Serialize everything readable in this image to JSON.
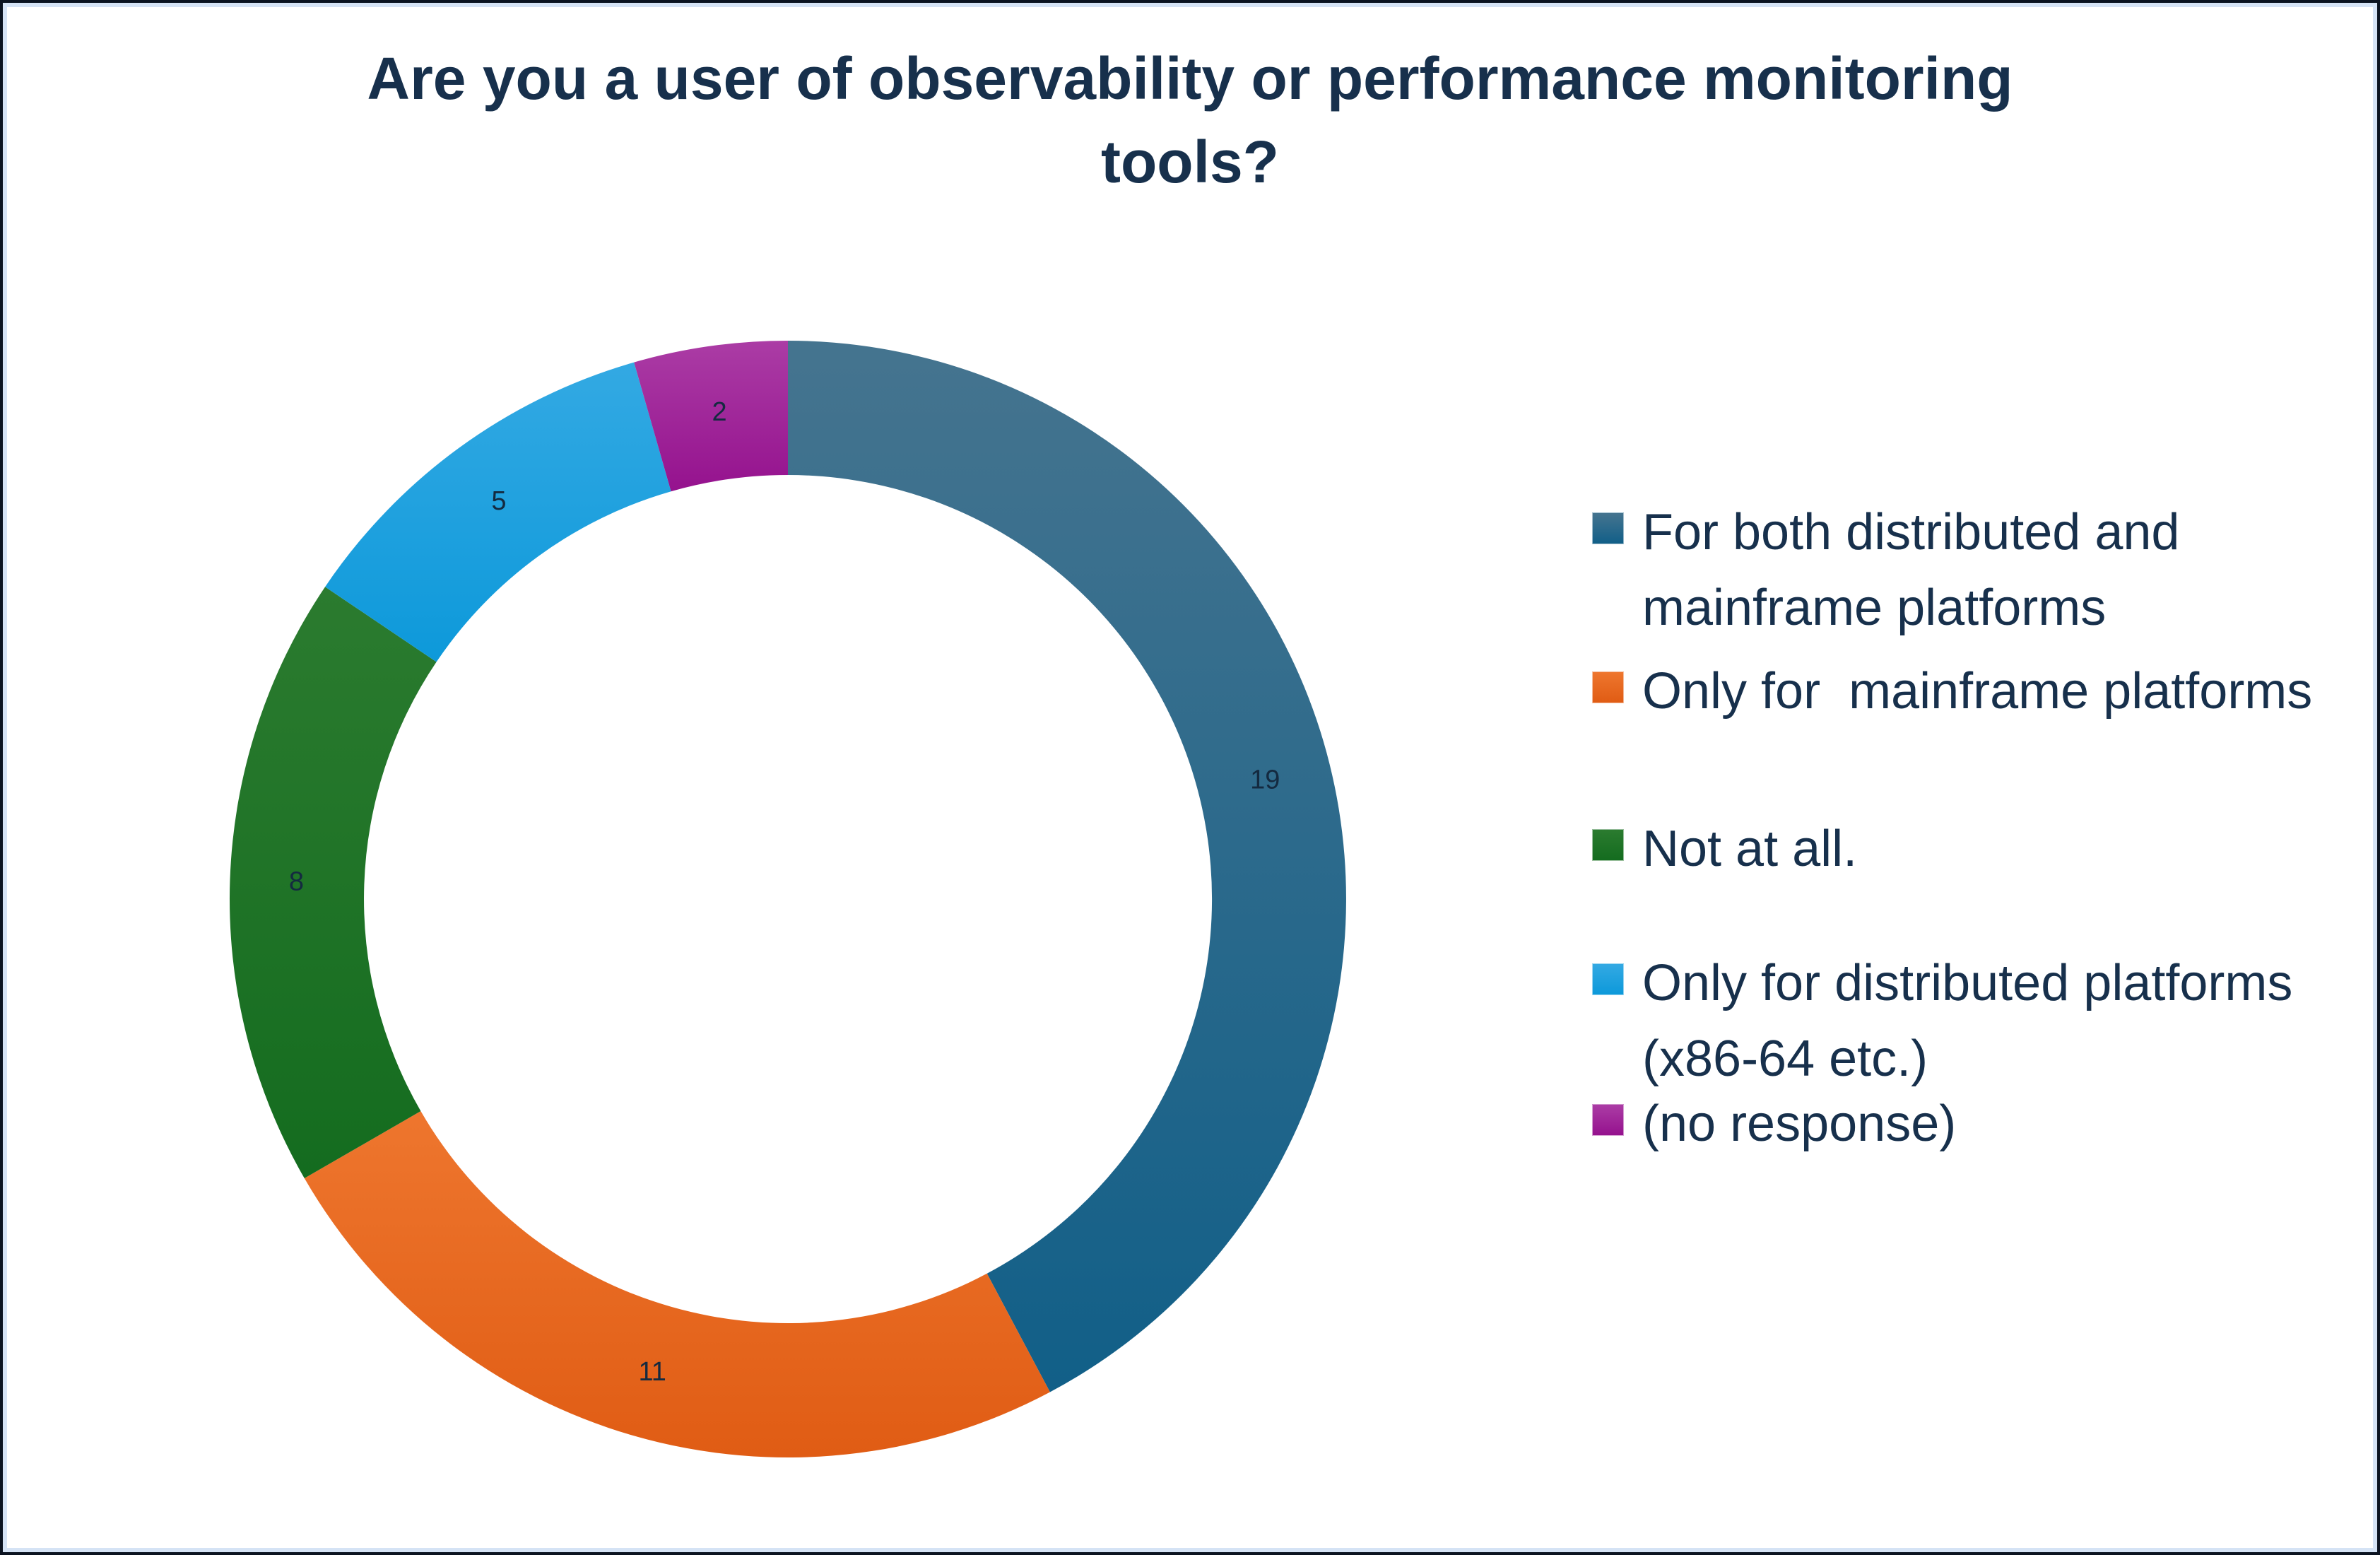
{
  "frame": {
    "outer_border_color": "#0b1320",
    "inner_border_color": "#d5e3f5",
    "background": "#ffffff"
  },
  "chart_data": {
    "type": "pie",
    "variant": "donut",
    "title": "Are you a user of observability or performance monitoring\ntools?",
    "total": 45,
    "legend_position": "right",
    "donut_hole_ratio": 0.76,
    "start_angle_deg": 0,
    "direction": "clockwise",
    "slices": [
      {
        "label": "For both distributed and\nmainframe platforms",
        "value": 19,
        "color_top": "#45748f",
        "color_bottom": "#115f88"
      },
      {
        "label": "Only for  mainframe platforms",
        "value": 11,
        "color_top": "#ee762e",
        "color_bottom": "#e05c14"
      },
      {
        "label": "Not at all.",
        "value": 8,
        "color_top": "#2b7b2f",
        "color_bottom": "#146c1f"
      },
      {
        "label": "Only for distributed platforms\n(x86-64 etc.)",
        "value": 5,
        "color_top": "#33a9e3",
        "color_bottom": "#0d99da"
      },
      {
        "label": "(no response)",
        "value": 2,
        "color_top": "#ab3ca5",
        "color_bottom": "#95128e"
      }
    ],
    "value_labels": [
      "19",
      "11",
      "8",
      "5",
      "2"
    ],
    "value_label_color": "#142a40",
    "text_color": "#17304c"
  }
}
